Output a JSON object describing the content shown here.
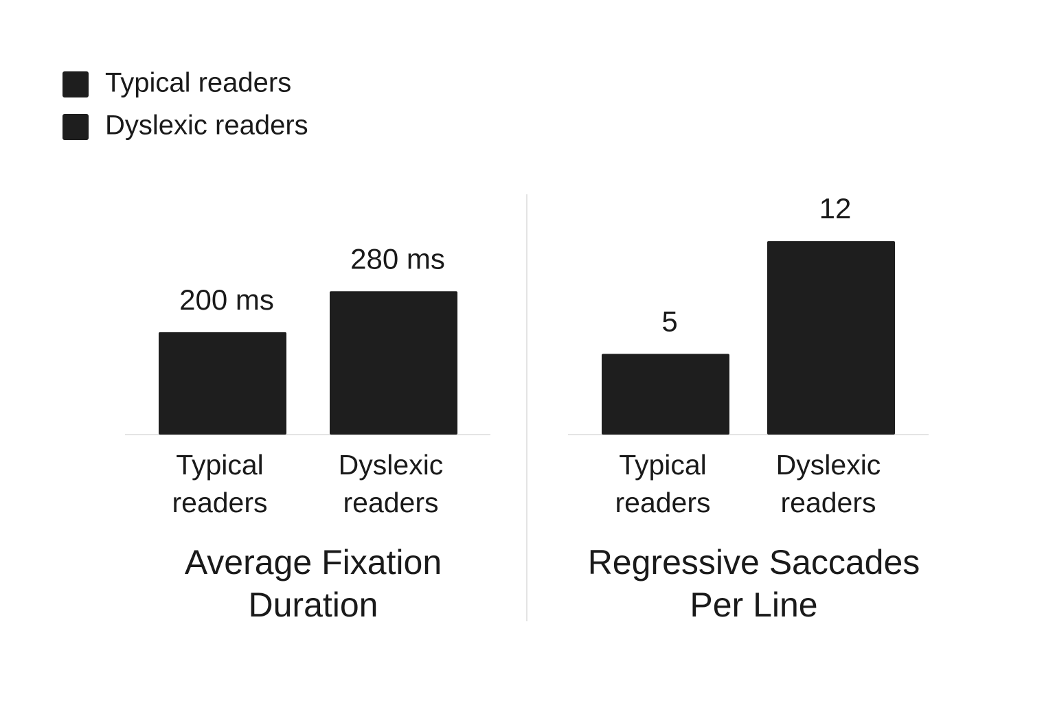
{
  "chart_data": [
    {
      "type": "bar",
      "title": "Average Fixation Duration",
      "categories": [
        "Typical readers",
        "Dyslexic readers"
      ],
      "values": [
        200,
        280
      ],
      "value_labels": [
        "200 ms",
        "280 ms"
      ],
      "color": "#1e1e1e",
      "ylim": [
        0,
        460
      ]
    },
    {
      "type": "bar",
      "title": "Regressive Saccades Per Line",
      "categories": [
        "Typical readers",
        "Dyslexic readers"
      ],
      "values": [
        5,
        12
      ],
      "color": "#1e1e1e",
      "ylim": [
        0,
        14.6
      ]
    }
  ]
}
